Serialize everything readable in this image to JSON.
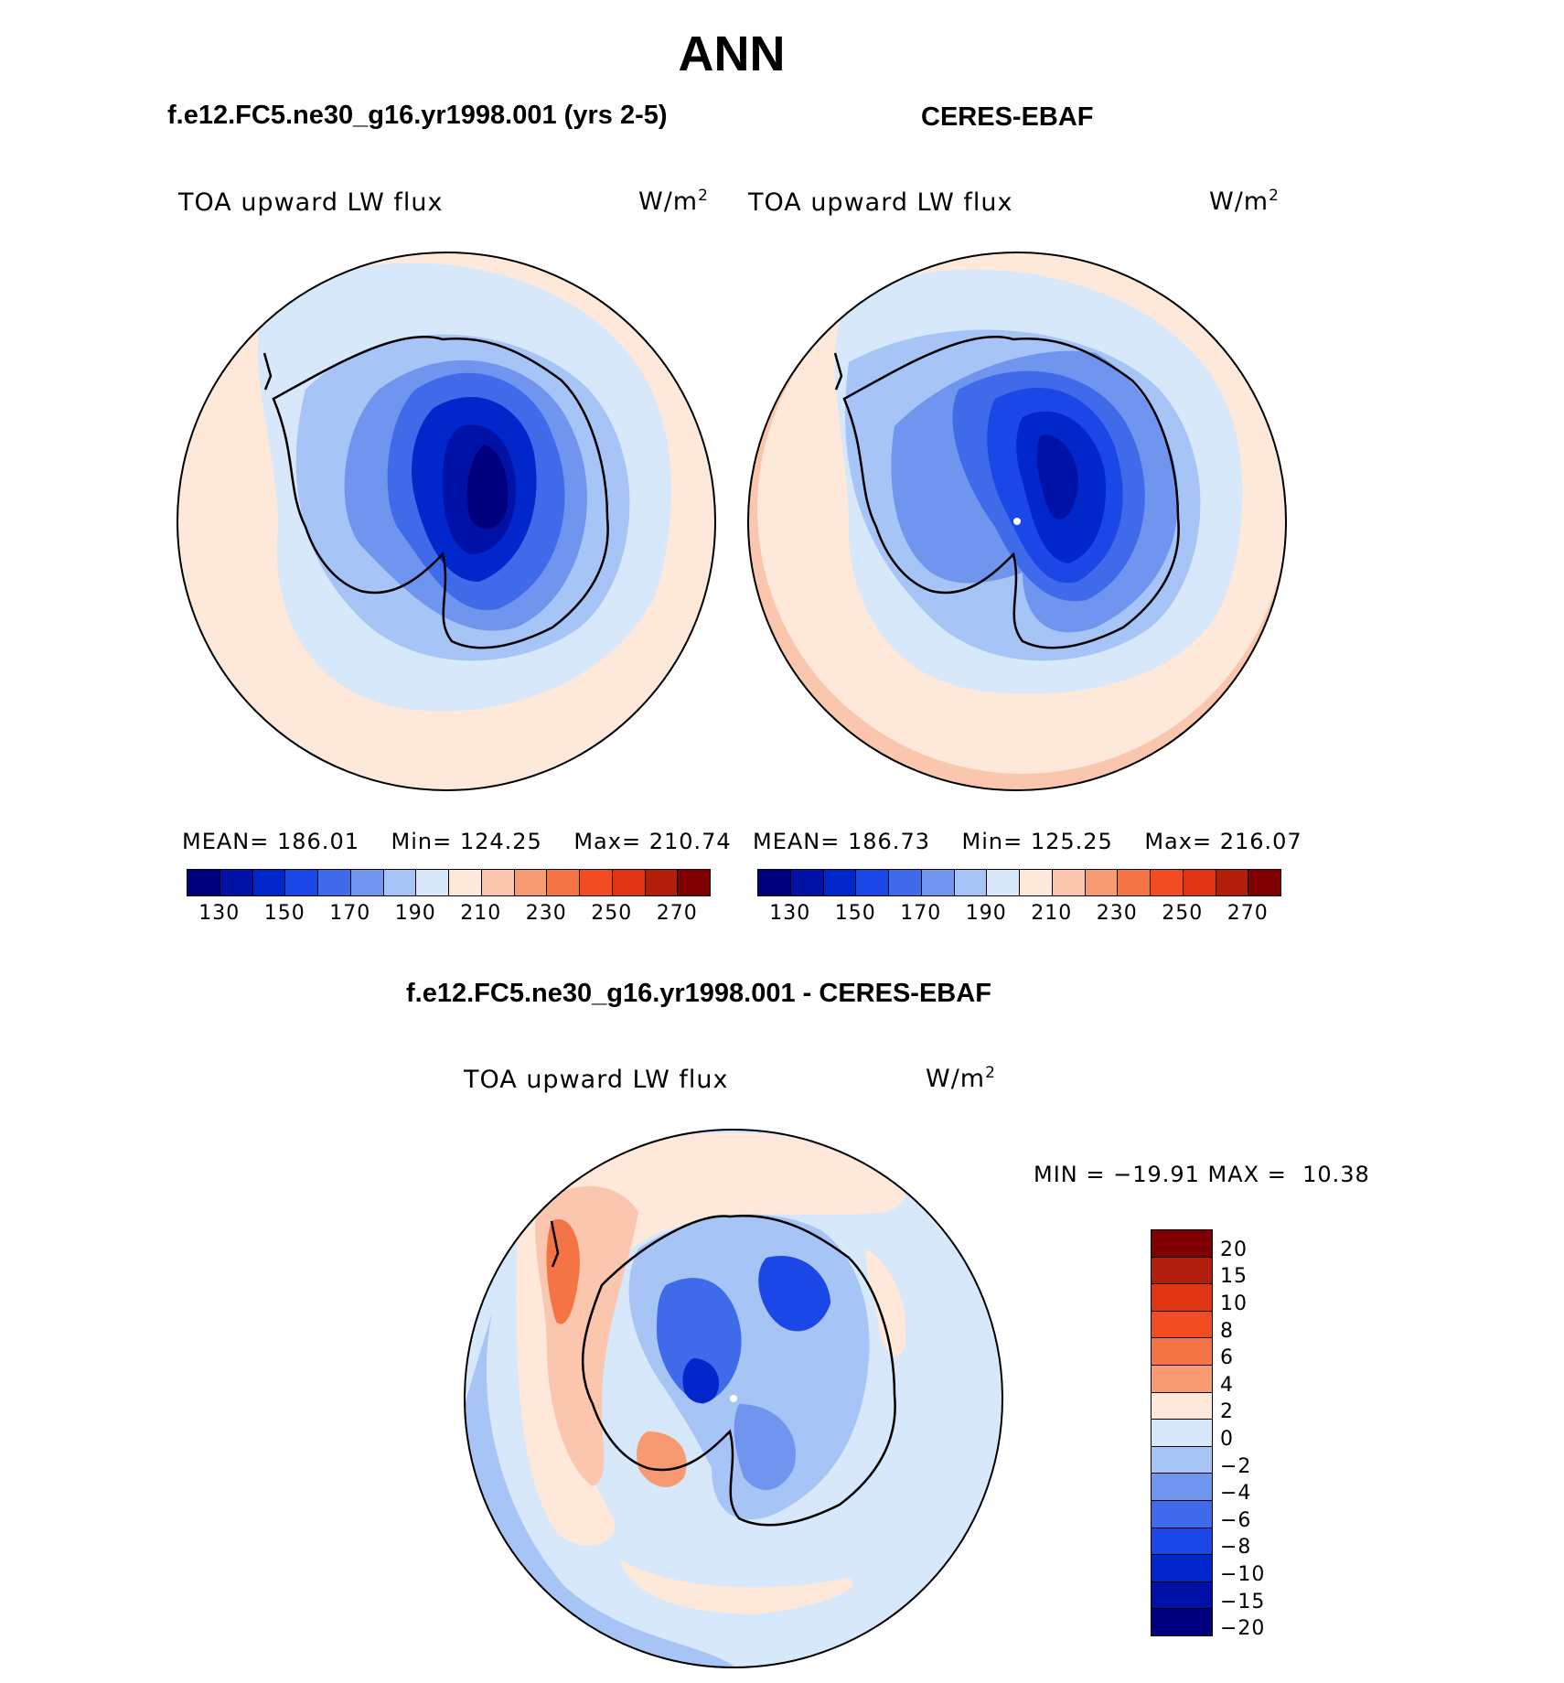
{
  "title": "ANN",
  "panels": [
    {
      "case_label": "f.e12.FC5.ne30_g16.yr1998.001 (yrs 2-5)",
      "variable": "TOA upward LW flux",
      "units_base": "W/m",
      "units_exp": "2",
      "stats": {
        "mean_label": "MEAN=",
        "mean": "186.01",
        "min_label": "Min=",
        "min": "124.25",
        "max_label": "Max=",
        "max": "210.74"
      }
    },
    {
      "case_label": "CERES-EBAF",
      "variable": "TOA upward LW flux",
      "units_base": "W/m",
      "units_exp": "2",
      "stats": {
        "mean_label": "MEAN=",
        "mean": "186.73",
        "min_label": "Min=",
        "min": "125.25",
        "max_label": "Max=",
        "max": "216.07"
      }
    }
  ],
  "abs_colorbar": {
    "colors": [
      "#00007f",
      "#0011a5",
      "#0026cc",
      "#1b47e6",
      "#3f6ae9",
      "#6f95ee",
      "#a6c4f6",
      "#d7e8fb",
      "#fde8d9",
      "#fac6ad",
      "#f79a71",
      "#f47446",
      "#f24c23",
      "#e13414",
      "#b31d0c",
      "#7f0000"
    ],
    "ticks": [
      "130",
      "150",
      "170",
      "190",
      "210",
      "230",
      "250",
      "270"
    ]
  },
  "diff": {
    "title": "f.e12.FC5.ne30_g16.yr1998.001 - CERES-EBAF",
    "variable": "TOA upward LW flux",
    "units_base": "W/m",
    "units_exp": "2",
    "minmax": "MIN = −19.91 MAX =  10.38",
    "colorbar": {
      "colors": [
        "#7f0000",
        "#b31d0c",
        "#e13414",
        "#f24c23",
        "#f47446",
        "#f79a71",
        "#fde8d9",
        "#d7e8fb",
        "#a6c4f6",
        "#6f95ee",
        "#3f6ae9",
        "#1b47e6",
        "#0026cc",
        "#0011a5",
        "#00007f"
      ],
      "ticks": [
        "20",
        "15",
        "10",
        "8",
        "6",
        "4",
        "2",
        "0",
        "−2",
        "−4",
        "−6",
        "−8",
        "−10",
        "−15",
        "−20"
      ]
    }
  },
  "map_colors": {
    "land_line": "#000000",
    "ocean_warm": "#fde8d9",
    "ocean_light": "#d7e8fb",
    "ice_mid": "#a6c4f6",
    "ice_blue": "#6f95ee",
    "ice_deep": "#1b47e6",
    "ice_core": "#0011a5",
    "ice_min": "#00007f"
  }
}
